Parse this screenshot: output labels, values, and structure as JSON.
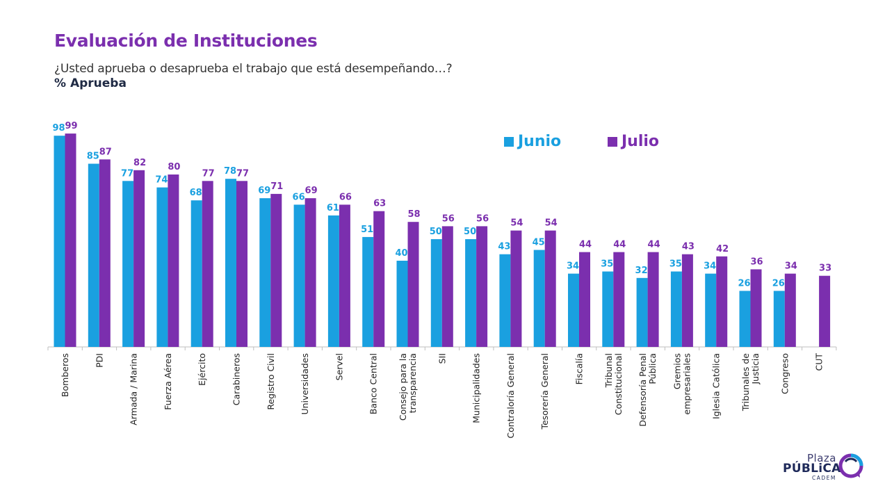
{
  "header": {
    "title": "Evaluación de Instituciones",
    "subtitle": "¿Usted aprueba o desaprueba el trabajo que está desempeñando…?",
    "measure": "% Aprueba"
  },
  "legend": {
    "junio": "Junio",
    "julio": "Julio"
  },
  "logo": {
    "line1": "Plaza",
    "line2": "PÚBLiCA",
    "line3": "CADEM"
  },
  "colors": {
    "junio": "#1aa0e0",
    "julio": "#7b2fae"
  },
  "chart_data": {
    "type": "bar",
    "title": "Evaluación de Instituciones",
    "subtitle": "¿Usted aprueba o desaprueba el trabajo que está desempeñando…?",
    "ylabel": "% Aprueba",
    "ylim": [
      0,
      100
    ],
    "grid": false,
    "legend_position": "top-right",
    "categories": [
      [
        "Bomberos"
      ],
      [
        "PDI"
      ],
      [
        "Armada / Marina"
      ],
      [
        "Fuerza Aérea"
      ],
      [
        "Ejército"
      ],
      [
        "Carabineros"
      ],
      [
        "Registro Civil"
      ],
      [
        "Universidades"
      ],
      [
        "Servel"
      ],
      [
        "Banco Central"
      ],
      [
        "Consejo para la",
        "transparencia"
      ],
      [
        "SII"
      ],
      [
        "Municipalidades"
      ],
      [
        "Contraloría General"
      ],
      [
        "Tesorería General"
      ],
      [
        "Fiscalía"
      ],
      [
        "Tribunal",
        "Constitucional"
      ],
      [
        "Defensoría Penal",
        "Pública"
      ],
      [
        "Gremios",
        "empresariales"
      ],
      [
        "Iglesia Católica"
      ],
      [
        "Tribunales de",
        "Justicia"
      ],
      [
        "Congreso"
      ],
      [
        "CUT"
      ]
    ],
    "series": [
      {
        "name": "Junio",
        "values": [
          98,
          85,
          77,
          74,
          68,
          78,
          69,
          66,
          61,
          51,
          40,
          50,
          50,
          43,
          45,
          34,
          35,
          32,
          35,
          34,
          26,
          26,
          null
        ]
      },
      {
        "name": "Julio",
        "values": [
          99,
          87,
          82,
          80,
          77,
          77,
          71,
          69,
          66,
          63,
          58,
          56,
          56,
          54,
          54,
          44,
          44,
          44,
          43,
          42,
          36,
          34,
          33
        ]
      }
    ]
  }
}
